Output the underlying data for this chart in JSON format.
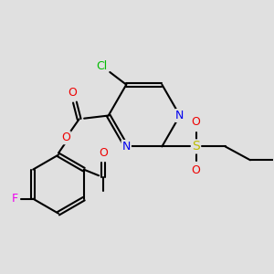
{
  "bg_color": "#e0e0e0",
  "bond_color": "#000000",
  "bond_width": 1.5,
  "atoms": {
    "Cl": {
      "color": "#00bb00",
      "fontsize": 9
    },
    "N": {
      "color": "#0000ee",
      "fontsize": 9
    },
    "O": {
      "color": "#ee0000",
      "fontsize": 9
    },
    "S": {
      "color": "#bbbb00",
      "fontsize": 10
    },
    "F": {
      "color": "#ee00ee",
      "fontsize": 9
    },
    "C": {
      "color": "#000000",
      "fontsize": 9
    }
  },
  "figsize": [
    3.0,
    3.0
  ],
  "dpi": 100
}
